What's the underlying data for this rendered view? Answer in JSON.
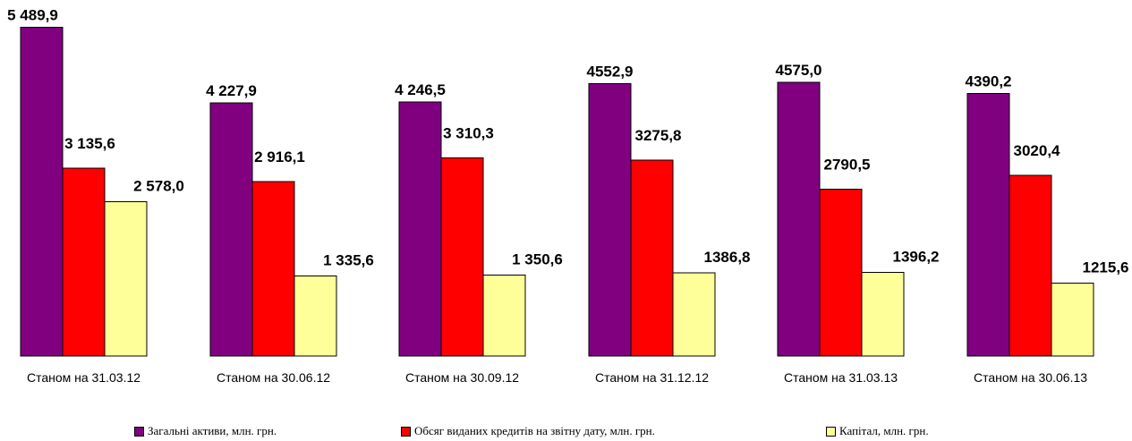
{
  "chart_data": {
    "type": "bar",
    "categories": [
      "Станом на 31.03.12",
      "Станом на 30.06.12",
      "Станом на 30.09.12",
      "Станом на 31.12.12",
      "Станом на 31.03.13",
      "Станом на 30.06.13"
    ],
    "series": [
      {
        "name": "Загальні активи, млн. грн.",
        "color": "#800080",
        "values": [
          5489.9,
          4227.9,
          4246.5,
          4552.9,
          4575.0,
          4390.2
        ],
        "labels": [
          "5 489,9",
          "4 227,9",
          "4 246,5",
          "4552,9",
          "4575,0",
          "4390,2"
        ]
      },
      {
        "name": "Обсяг виданих кредитів на звітну дату, млн. грн.",
        "color": "#ff0000",
        "values": [
          3135.6,
          2916.1,
          3310.3,
          3275.8,
          2790.5,
          3020.4
        ],
        "labels": [
          "3 135,6",
          "2 916,1",
          "3 310,3",
          "3275,8",
          "2790,5",
          "3020,4"
        ]
      },
      {
        "name": "Капітал, млн. грн.",
        "color": "#ffff99",
        "values": [
          2578.0,
          1335.6,
          1350.6,
          1386.8,
          1396.2,
          1215.6
        ],
        "labels": [
          "2 578,0",
          "1 335,6",
          "1 350,6",
          "1386,8",
          "1396,2",
          "1215,6"
        ]
      }
    ],
    "ylim": [
      0,
      5500
    ],
    "grid": false,
    "legend_position": "bottom"
  }
}
